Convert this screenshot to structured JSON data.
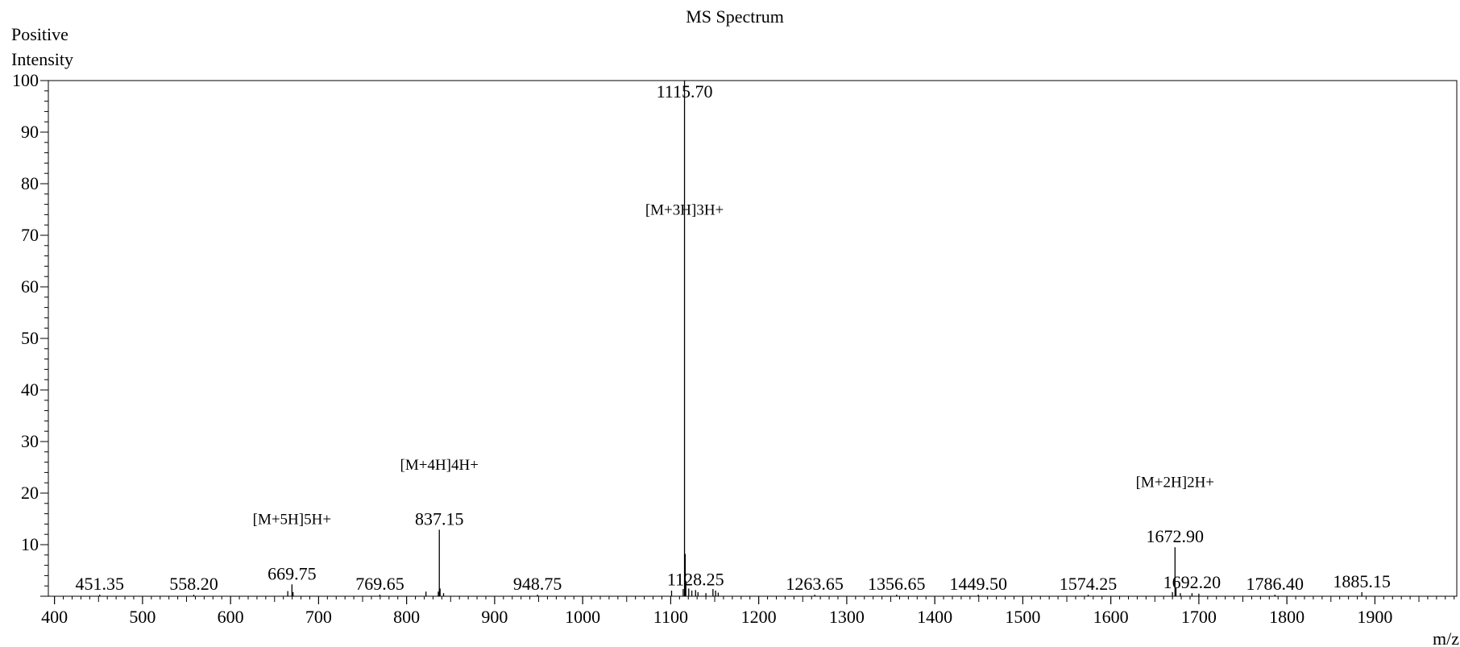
{
  "chart_data": {
    "type": "line",
    "title": "MS Spectrum",
    "ylabel_line1": "Positive",
    "ylabel_line2": "Intensity",
    "xlabel": "m/z",
    "xlim": [
      393,
      1993
    ],
    "ylim": [
      0,
      100
    ],
    "x_ticks": [
      400,
      500,
      600,
      700,
      800,
      900,
      1000,
      1100,
      1200,
      1300,
      1400,
      1500,
      1600,
      1700,
      1800,
      1900
    ],
    "y_ticks": [
      10,
      20,
      30,
      40,
      50,
      60,
      70,
      80,
      90,
      100
    ],
    "grid": false,
    "peaks": [
      {
        "mz": 1115.7,
        "intensity": 100,
        "label": "1115.70"
      },
      {
        "mz": 837.15,
        "intensity": 12.9,
        "label": "837.15"
      },
      {
        "mz": 669.75,
        "intensity": 2.3,
        "label": "669.75"
      },
      {
        "mz": 1672.9,
        "intensity": 9.5,
        "label": "1672.90"
      },
      {
        "mz": 1128.25,
        "intensity": 1.2,
        "label": "1128.25"
      },
      {
        "mz": 451.35,
        "intensity": 0.3,
        "label": "451.35"
      },
      {
        "mz": 558.2,
        "intensity": 0.3,
        "label": "558.20"
      },
      {
        "mz": 769.65,
        "intensity": 0.3,
        "label": "769.65"
      },
      {
        "mz": 948.75,
        "intensity": 0.3,
        "label": "948.75"
      },
      {
        "mz": 1263.65,
        "intensity": 0.3,
        "label": "1263.65"
      },
      {
        "mz": 1356.65,
        "intensity": 0.3,
        "label": "1356.65"
      },
      {
        "mz": 1449.5,
        "intensity": 0.3,
        "label": "1449.50"
      },
      {
        "mz": 1574.25,
        "intensity": 0.3,
        "label": "1574.25"
      },
      {
        "mz": 1692.2,
        "intensity": 0.6,
        "label": "1692.20"
      },
      {
        "mz": 1786.4,
        "intensity": 0.3,
        "label": "1786.40"
      },
      {
        "mz": 1885.15,
        "intensity": 0.8,
        "label": "1885.15"
      },
      {
        "mz": 1116.5,
        "intensity": 8.2
      },
      {
        "mz": 1117.2,
        "intensity": 3.0
      },
      {
        "mz": 1114.2,
        "intensity": 1.4
      },
      {
        "mz": 1120.5,
        "intensity": 1.5
      },
      {
        "mz": 1124.0,
        "intensity": 1.1
      },
      {
        "mz": 1131.0,
        "intensity": 0.8
      },
      {
        "mz": 1140.0,
        "intensity": 0.6
      },
      {
        "mz": 1148.0,
        "intensity": 1.4
      },
      {
        "mz": 1151.0,
        "intensity": 1.1
      },
      {
        "mz": 1154.0,
        "intensity": 0.7
      },
      {
        "mz": 1101.0,
        "intensity": 1.1
      },
      {
        "mz": 838.0,
        "intensity": 1.5
      },
      {
        "mz": 836.0,
        "intensity": 0.9
      },
      {
        "mz": 842.0,
        "intensity": 0.6
      },
      {
        "mz": 822.0,
        "intensity": 0.9
      },
      {
        "mz": 665.0,
        "intensity": 1.0
      },
      {
        "mz": 671.0,
        "intensity": 0.8
      },
      {
        "mz": 1674.0,
        "intensity": 1.6
      },
      {
        "mz": 1670.0,
        "intensity": 0.8
      },
      {
        "mz": 1679.0,
        "intensity": 0.6
      },
      {
        "mz": 1700.0,
        "intensity": 0.5
      }
    ],
    "annotations": [
      {
        "text": "[M+3H]3H+",
        "mz": 1115.7,
        "intensity": 74
      },
      {
        "text": "[M+4H]4H+",
        "mz": 837.15,
        "intensity": 24.5
      },
      {
        "text": "[M+5H]5H+",
        "mz": 669.75,
        "intensity": 14.0
      },
      {
        "text": "[M+2H]2H+",
        "mz": 1672.9,
        "intensity": 21.2
      }
    ],
    "colors": {
      "line": "#000000",
      "background": "#ffffff"
    }
  }
}
